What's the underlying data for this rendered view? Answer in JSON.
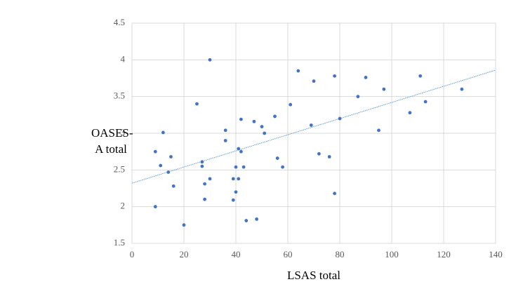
{
  "chart_data": {
    "type": "scatter",
    "x_label": "LSAS total",
    "y_label": "OASES-A total",
    "series": [
      {
        "color": "#4472c4",
        "x": [
          9,
          12,
          11,
          15,
          14,
          16,
          9,
          20,
          25,
          30,
          27,
          27,
          28,
          30,
          28,
          36,
          36,
          39,
          39,
          40,
          40,
          41,
          41,
          42,
          42,
          43,
          44,
          48,
          47,
          50,
          51,
          55,
          56,
          58,
          61,
          64,
          70,
          69,
          72,
          76,
          78,
          78,
          80,
          87,
          90,
          95,
          97,
          107,
          111,
          113,
          127
        ],
        "values": [
          2.75,
          3.01,
          2.56,
          2.68,
          2.47,
          2.28,
          2.0,
          1.75,
          3.4,
          4.0,
          2.61,
          2.55,
          2.31,
          2.38,
          2.1,
          3.04,
          2.9,
          2.38,
          2.09,
          2.54,
          2.2,
          2.79,
          2.38,
          3.19,
          2.75,
          2.54,
          1.81,
          1.83,
          3.16,
          3.09,
          3.0,
          3.23,
          2.66,
          2.54,
          3.39,
          3.85,
          3.71,
          3.11,
          2.72,
          2.68,
          3.78,
          2.18,
          3.2,
          3.5,
          3.76,
          3.04,
          3.6,
          3.28,
          3.78,
          3.43,
          3.6
        ]
      }
    ],
    "trendline": {
      "color": "#5b9bd5",
      "x": [
        0,
        140
      ],
      "values": [
        2.32,
        3.86
      ]
    },
    "xlim": [
      0,
      140
    ],
    "xticks": [
      0,
      20,
      40,
      60,
      80,
      100,
      120,
      140
    ],
    "ylim": [
      1.5,
      4.5
    ],
    "yticks": [
      1.5,
      2,
      2.5,
      3,
      3.5,
      4,
      4.5
    ],
    "grid": true
  }
}
